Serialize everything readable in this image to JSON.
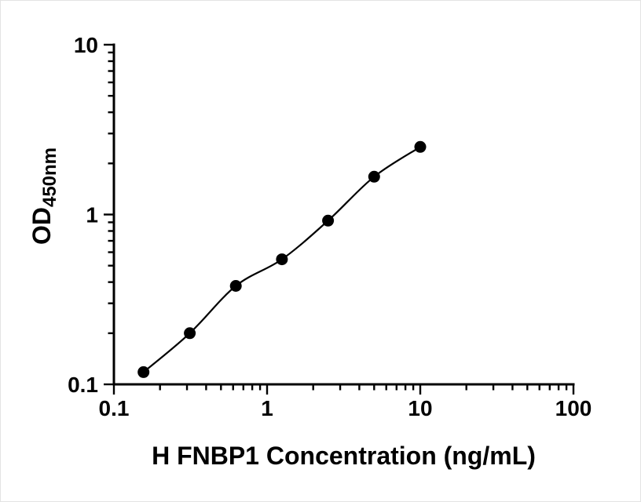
{
  "chart_data": {
    "type": "scatter",
    "title": "",
    "xlabel": "H FNBP1 Concentration (ng/mL)",
    "ylabel_main": "OD",
    "ylabel_sub": "450nm",
    "x_scale": "log",
    "y_scale": "log",
    "xlim": [
      0.1,
      100
    ],
    "ylim": [
      0.1,
      10
    ],
    "x": [
      0.156,
      0.313,
      0.625,
      1.25,
      2.5,
      5,
      10
    ],
    "y": [
      0.118,
      0.2,
      0.38,
      0.545,
      0.92,
      1.67,
      2.5
    ],
    "x_tick_values": [
      0.1,
      1,
      10,
      100
    ],
    "x_tick_labels": [
      "0.1",
      "1",
      "10",
      "100"
    ],
    "y_tick_values": [
      0.1,
      1,
      10
    ],
    "y_tick_labels": [
      "0.1",
      "1",
      "10"
    ],
    "line_color": "#000000",
    "marker_color": "#000000",
    "grid": false,
    "legend": "none"
  }
}
